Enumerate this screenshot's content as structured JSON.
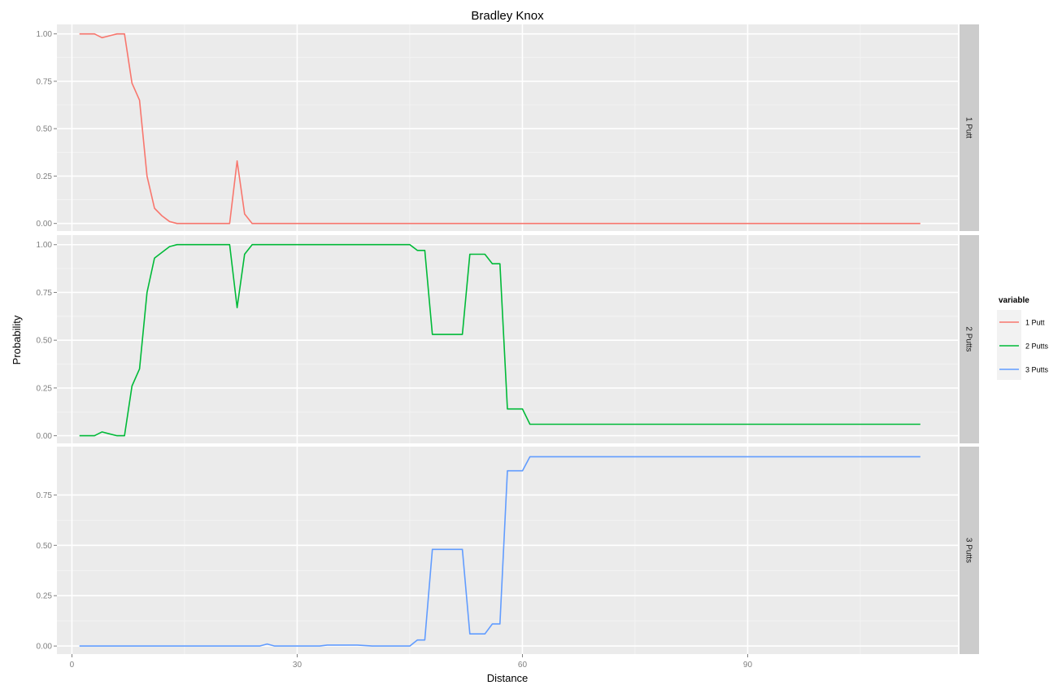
{
  "chart_data": {
    "type": "line",
    "title": "Bradley Knox",
    "xlabel": "Distance",
    "ylabel": "Probability",
    "xlim": [
      -2,
      118
    ],
    "x_ticks": [
      0,
      30,
      60,
      90
    ],
    "x_tick_labels": [
      "0",
      "30",
      "60",
      "90"
    ],
    "grid": true,
    "legend": {
      "title": "variable",
      "position": "right",
      "entries": [
        "1 Putt",
        "2 Putts",
        "3 Putts"
      ]
    },
    "panels": [
      {
        "strip": "1 Putt",
        "series": "1 Putt",
        "ylim": [
          -0.04,
          1.05
        ],
        "y_ticks": [
          0,
          0.25,
          0.5,
          0.75,
          1
        ],
        "y_tick_labels": [
          "0.00",
          "0.25",
          "0.50",
          "0.75",
          "1.00"
        ]
      },
      {
        "strip": "2 Putts",
        "series": "2 Putts",
        "ylim": [
          -0.04,
          1.05
        ],
        "y_ticks": [
          0,
          0.25,
          0.5,
          0.75,
          1
        ],
        "y_tick_labels": [
          "0.00",
          "0.25",
          "0.50",
          "0.75",
          "1.00"
        ]
      },
      {
        "strip": "3 Putts",
        "series": "3 Putts",
        "ylim": [
          -0.04,
          0.99
        ],
        "y_ticks": [
          0,
          0.25,
          0.5,
          0.75
        ],
        "y_tick_labels": [
          "0.00",
          "0.25",
          "0.50",
          "0.75"
        ]
      }
    ],
    "series": [
      {
        "name": "1 Putt",
        "color": "#f8766d",
        "points": [
          [
            1,
            1.0
          ],
          [
            2,
            1.0
          ],
          [
            3,
            1.0
          ],
          [
            4,
            0.98
          ],
          [
            5,
            0.99
          ],
          [
            6,
            1.0
          ],
          [
            7,
            1.0
          ],
          [
            8,
            0.74
          ],
          [
            9,
            0.65
          ],
          [
            10,
            0.25
          ],
          [
            11,
            0.08
          ],
          [
            12,
            0.04
          ],
          [
            13,
            0.01
          ],
          [
            14,
            0.0
          ],
          [
            20,
            0.0
          ],
          [
            21,
            0.0
          ],
          [
            22,
            0.33
          ],
          [
            23,
            0.05
          ],
          [
            24,
            0.0
          ],
          [
            30,
            0.0
          ],
          [
            60,
            0.0
          ],
          [
            90,
            0.0
          ],
          [
            113,
            0.0
          ]
        ]
      },
      {
        "name": "2 Putts",
        "color": "#00ba38",
        "points": [
          [
            1,
            0.0
          ],
          [
            2,
            0.0
          ],
          [
            3,
            0.0
          ],
          [
            4,
            0.02
          ],
          [
            5,
            0.01
          ],
          [
            6,
            0.0
          ],
          [
            7,
            0.0
          ],
          [
            8,
            0.26
          ],
          [
            9,
            0.35
          ],
          [
            10,
            0.75
          ],
          [
            11,
            0.93
          ],
          [
            12,
            0.96
          ],
          [
            13,
            0.99
          ],
          [
            14,
            1.0
          ],
          [
            20,
            1.0
          ],
          [
            21,
            1.0
          ],
          [
            22,
            0.67
          ],
          [
            23,
            0.95
          ],
          [
            24,
            1.0
          ],
          [
            25,
            1.0
          ],
          [
            26,
            1.0
          ],
          [
            27,
            1.0
          ],
          [
            45,
            1.0
          ],
          [
            46,
            0.97
          ],
          [
            47,
            0.97
          ],
          [
            48,
            0.53
          ],
          [
            52,
            0.53
          ],
          [
            53,
            0.95
          ],
          [
            55,
            0.95
          ],
          [
            56,
            0.9
          ],
          [
            57,
            0.9
          ],
          [
            58,
            0.14
          ],
          [
            59,
            0.14
          ],
          [
            60,
            0.14
          ],
          [
            61,
            0.06
          ],
          [
            70,
            0.06
          ],
          [
            90,
            0.06
          ],
          [
            113,
            0.06
          ]
        ]
      },
      {
        "name": "3 Putts",
        "color": "#619cff",
        "points": [
          [
            1,
            0.0
          ],
          [
            20,
            0.0
          ],
          [
            25,
            0.0
          ],
          [
            26,
            0.01
          ],
          [
            27,
            0.0
          ],
          [
            30,
            0.0
          ],
          [
            33,
            0.0
          ],
          [
            34,
            0.005
          ],
          [
            38,
            0.005
          ],
          [
            40,
            0.0
          ],
          [
            45,
            0.0
          ],
          [
            46,
            0.03
          ],
          [
            47,
            0.03
          ],
          [
            48,
            0.48
          ],
          [
            52,
            0.48
          ],
          [
            53,
            0.06
          ],
          [
            55,
            0.06
          ],
          [
            56,
            0.11
          ],
          [
            57,
            0.11
          ],
          [
            58,
            0.87
          ],
          [
            60,
            0.87
          ],
          [
            61,
            0.94
          ],
          [
            70,
            0.94
          ],
          [
            90,
            0.94
          ],
          [
            113,
            0.94
          ]
        ]
      }
    ]
  }
}
